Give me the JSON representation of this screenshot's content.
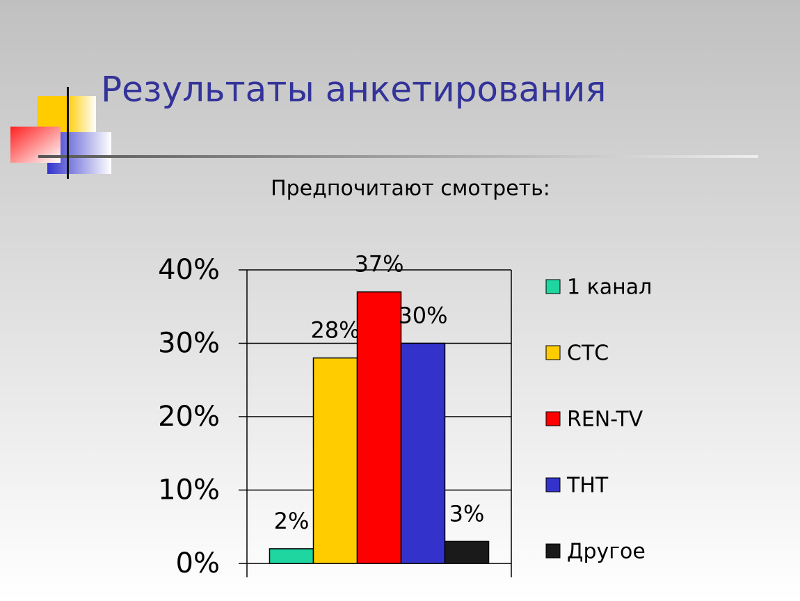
{
  "chart_data": {
    "type": "bar",
    "title": "Результаты анкетирования",
    "subtitle": "Предпочитают смотреть:",
    "categories": [
      null
    ],
    "series": [
      {
        "name": "1 канал",
        "color": "#1fd6a0",
        "values": [
          2
        ],
        "value_labels": [
          "2%"
        ]
      },
      {
        "name": "СТС",
        "color": "#ffcc00",
        "values": [
          28
        ],
        "value_labels": [
          "28%"
        ]
      },
      {
        "name": "REN-TV",
        "color": "#ff0000",
        "values": [
          37
        ],
        "value_labels": [
          "37%"
        ]
      },
      {
        "name": "ТНТ",
        "color": "#3333cc",
        "values": [
          30
        ],
        "value_labels": [
          "30%"
        ]
      },
      {
        "name": "Другое",
        "color": "#1a1a1a",
        "values": [
          3
        ],
        "value_labels": [
          "3%"
        ]
      }
    ],
    "ylim": [
      0,
      40
    ],
    "yticks": [
      {
        "value": 0,
        "label": "0%"
      },
      {
        "value": 10,
        "label": "10%"
      },
      {
        "value": 20,
        "label": "20%"
      },
      {
        "value": 30,
        "label": "30%"
      },
      {
        "value": 40,
        "label": "40%"
      }
    ],
    "grid": true,
    "legend": "right"
  }
}
